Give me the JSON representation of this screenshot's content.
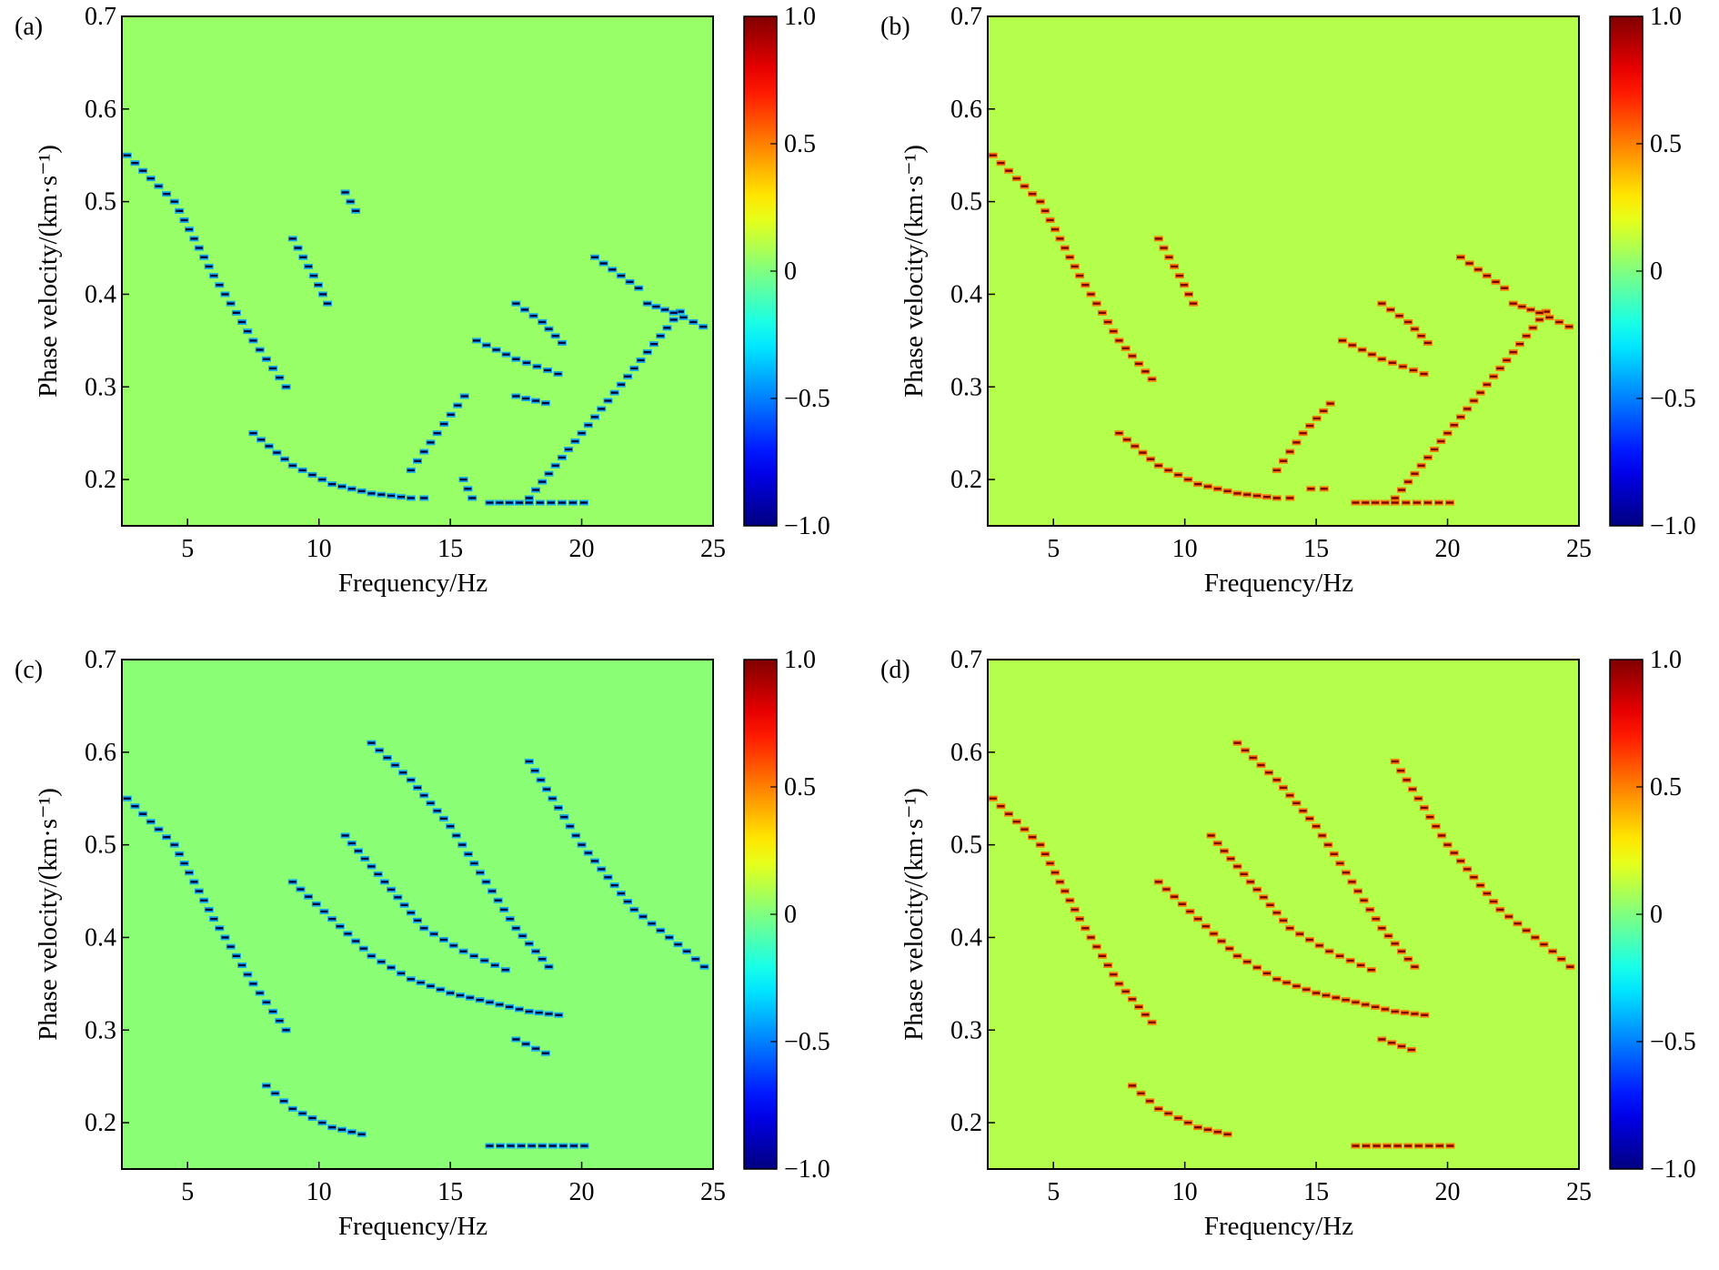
{
  "chart_data": [
    {
      "type": "heatmap",
      "panel_label": "(a)",
      "xlabel": "Frequency/Hz",
      "ylabel": "Phase velocity/(km·s⁻¹)",
      "xlim": [
        2.5,
        25
      ],
      "ylim": [
        0.15,
        0.7
      ],
      "x_ticks": [
        "5",
        "10",
        "15",
        "20",
        "25"
      ],
      "y_ticks": [
        "0.2",
        "0.3",
        "0.4",
        "0.5",
        "0.6",
        "0.7"
      ],
      "colorbar": {
        "min": -1.0,
        "max": 1.0,
        "ticks": [
          "1.0",
          "0.5",
          "0",
          "−0.5",
          "−1.0"
        ],
        "colormap": "jet"
      },
      "background_value": 0.05,
      "ridges": [
        {
          "x": [
            2.7,
            4.5,
            6.0,
            7.5,
            9.0
          ],
          "y": [
            0.55,
            0.5,
            0.42,
            0.35,
            0.29
          ],
          "sign": -1
        },
        {
          "x": [
            7.5,
            9.0,
            10.5,
            12.0,
            13.5,
            14.5
          ],
          "y": [
            0.25,
            0.215,
            0.195,
            0.185,
            0.18,
            0.18
          ],
          "sign": -1
        },
        {
          "x": [
            9.0,
            9.8,
            10.5
          ],
          "y": [
            0.46,
            0.42,
            0.38
          ],
          "sign": -1
        },
        {
          "x": [
            11.0,
            11.6
          ],
          "y": [
            0.51,
            0.48
          ],
          "sign": -1
        },
        {
          "x": [
            13.5,
            14.5,
            15.8
          ],
          "y": [
            0.21,
            0.25,
            0.3
          ],
          "sign": -1
        },
        {
          "x": [
            15.5,
            16.0
          ],
          "y": [
            0.2,
            0.17
          ],
          "sign": -1
        },
        {
          "x": [
            16.5,
            18.0,
            20.5
          ],
          "y": [
            0.175,
            0.175,
            0.175
          ],
          "sign": -1
        },
        {
          "x": [
            16.0,
            17.5,
            19.5
          ],
          "y": [
            0.35,
            0.33,
            0.31
          ],
          "sign": -1
        },
        {
          "x": [
            17.5,
            18.5,
            19.5
          ],
          "y": [
            0.39,
            0.37,
            0.34
          ],
          "sign": -1
        },
        {
          "x": [
            17.5,
            19.0
          ],
          "y": [
            0.29,
            0.28
          ],
          "sign": -1
        },
        {
          "x": [
            18.0,
            20.0,
            22.0,
            24.0
          ],
          "y": [
            0.18,
            0.25,
            0.32,
            0.39
          ],
          "sign": -1
        },
        {
          "x": [
            20.5,
            21.5,
            22.5
          ],
          "y": [
            0.44,
            0.42,
            0.4
          ],
          "sign": -1
        },
        {
          "x": [
            22.5,
            23.5,
            25.0
          ],
          "y": [
            0.39,
            0.38,
            0.36
          ],
          "sign": -1
        }
      ]
    },
    {
      "type": "heatmap",
      "panel_label": "(b)",
      "xlabel": "Frequency/Hz",
      "ylabel": "Phase velocity/(km·s⁻¹)",
      "xlim": [
        2.5,
        25
      ],
      "ylim": [
        0.15,
        0.7
      ],
      "x_ticks": [
        "5",
        "10",
        "15",
        "20",
        "25"
      ],
      "y_ticks": [
        "0.2",
        "0.3",
        "0.4",
        "0.5",
        "0.6",
        "0.7"
      ],
      "colorbar": {
        "min": -1.0,
        "max": 1.0,
        "ticks": [
          "1.0",
          "0.5",
          "0",
          "−0.5",
          "−1.0"
        ],
        "colormap": "jet"
      },
      "background_value": 0.1,
      "ridges": [
        {
          "x": [
            2.7,
            4.5,
            6.0,
            7.5,
            9.0
          ],
          "y": [
            0.55,
            0.5,
            0.42,
            0.35,
            0.3
          ],
          "sign": 1
        },
        {
          "x": [
            7.5,
            9.0,
            10.5,
            12.0,
            13.5,
            14.5
          ],
          "y": [
            0.25,
            0.215,
            0.195,
            0.185,
            0.18,
            0.18
          ],
          "sign": 1
        },
        {
          "x": [
            9.0,
            9.8,
            10.5
          ],
          "y": [
            0.46,
            0.42,
            0.38
          ],
          "sign": 1
        },
        {
          "x": [
            13.5,
            14.5,
            15.8
          ],
          "y": [
            0.21,
            0.25,
            0.29
          ],
          "sign": 1
        },
        {
          "x": [
            14.8,
            15.8
          ],
          "y": [
            0.19,
            0.19
          ],
          "sign": 1
        },
        {
          "x": [
            16.5,
            18.0,
            20.5
          ],
          "y": [
            0.175,
            0.175,
            0.175
          ],
          "sign": 1
        },
        {
          "x": [
            16.0,
            17.5,
            19.5
          ],
          "y": [
            0.35,
            0.33,
            0.31
          ],
          "sign": 1
        },
        {
          "x": [
            17.5,
            18.5,
            19.5
          ],
          "y": [
            0.39,
            0.37,
            0.34
          ],
          "sign": 1
        },
        {
          "x": [
            18.0,
            20.0,
            22.0,
            24.0
          ],
          "y": [
            0.18,
            0.25,
            0.32,
            0.39
          ],
          "sign": 1
        },
        {
          "x": [
            20.5,
            21.5,
            22.5
          ],
          "y": [
            0.44,
            0.42,
            0.4
          ],
          "sign": 1
        },
        {
          "x": [
            22.5,
            23.5,
            25.0
          ],
          "y": [
            0.39,
            0.38,
            0.36
          ],
          "sign": 1
        }
      ]
    },
    {
      "type": "heatmap",
      "panel_label": "(c)",
      "xlabel": "Frequency/Hz",
      "ylabel": "Phase velocity/(km·s⁻¹)",
      "xlim": [
        2.5,
        25
      ],
      "ylim": [
        0.15,
        0.7
      ],
      "x_ticks": [
        "5",
        "10",
        "15",
        "20",
        "25"
      ],
      "y_ticks": [
        "0.2",
        "0.3",
        "0.4",
        "0.5",
        "0.6",
        "0.7"
      ],
      "colorbar": {
        "min": -1.0,
        "max": 1.0,
        "ticks": [
          "1.0",
          "0.5",
          "0",
          "−0.5",
          "−1.0"
        ],
        "colormap": "jet"
      },
      "background_value": 0.02,
      "ridges": [
        {
          "x": [
            2.7,
            4.5,
            6.0,
            7.5,
            9.0
          ],
          "y": [
            0.55,
            0.5,
            0.42,
            0.35,
            0.29
          ],
          "sign": -1
        },
        {
          "x": [
            8.0,
            9.0,
            10.5,
            12.0
          ],
          "y": [
            0.24,
            0.215,
            0.195,
            0.185
          ],
          "sign": -1
        },
        {
          "x": [
            9.0,
            10.5,
            12.0,
            13.5,
            15.0,
            16.5,
            18.0,
            19.5
          ],
          "y": [
            0.46,
            0.42,
            0.38,
            0.355,
            0.34,
            0.33,
            0.32,
            0.315
          ],
          "sign": -1
        },
        {
          "x": [
            11.0,
            12.5,
            14.0,
            15.5,
            17.5
          ],
          "y": [
            0.51,
            0.46,
            0.41,
            0.385,
            0.36
          ],
          "sign": -1
        },
        {
          "x": [
            12.0,
            13.5,
            15.0,
            17.5,
            19.0
          ],
          "y": [
            0.61,
            0.57,
            0.52,
            0.41,
            0.36
          ],
          "sign": -1
        },
        {
          "x": [
            17.5,
            19.0
          ],
          "y": [
            0.29,
            0.27
          ],
          "sign": -1
        },
        {
          "x": [
            16.5,
            18.5,
            20.5
          ],
          "y": [
            0.175,
            0.175,
            0.175
          ],
          "sign": -1
        },
        {
          "x": [
            18.0,
            20.0,
            22.0,
            24.0,
            25.0
          ],
          "y": [
            0.59,
            0.5,
            0.43,
            0.385,
            0.36
          ],
          "sign": -1
        }
      ]
    },
    {
      "type": "heatmap",
      "panel_label": "(d)",
      "xlabel": "Frequency/Hz",
      "ylabel": "Phase velocity/(km·s⁻¹)",
      "xlim": [
        2.5,
        25
      ],
      "ylim": [
        0.15,
        0.7
      ],
      "x_ticks": [
        "5",
        "10",
        "15",
        "20",
        "25"
      ],
      "y_ticks": [
        "0.2",
        "0.3",
        "0.4",
        "0.5",
        "0.6",
        "0.7"
      ],
      "colorbar": {
        "min": -1.0,
        "max": 1.0,
        "ticks": [
          "1.0",
          "0.5",
          "0",
          "−0.5",
          "−1.0"
        ],
        "colormap": "jet"
      },
      "background_value": 0.1,
      "ridges": [
        {
          "x": [
            2.7,
            4.5,
            6.0,
            7.5,
            9.0
          ],
          "y": [
            0.55,
            0.5,
            0.42,
            0.35,
            0.3
          ],
          "sign": 1
        },
        {
          "x": [
            8.0,
            9.0,
            10.5,
            12.0
          ],
          "y": [
            0.24,
            0.215,
            0.195,
            0.185
          ],
          "sign": 1
        },
        {
          "x": [
            9.0,
            10.5,
            12.0,
            13.5,
            15.0,
            16.5,
            18.0,
            19.5
          ],
          "y": [
            0.46,
            0.42,
            0.38,
            0.355,
            0.34,
            0.33,
            0.32,
            0.315
          ],
          "sign": 1
        },
        {
          "x": [
            11.0,
            12.5,
            14.0,
            15.5,
            17.5
          ],
          "y": [
            0.51,
            0.46,
            0.41,
            0.385,
            0.36
          ],
          "sign": 1
        },
        {
          "x": [
            12.0,
            13.5,
            15.0,
            17.5,
            19.0
          ],
          "y": [
            0.61,
            0.57,
            0.52,
            0.41,
            0.36
          ],
          "sign": 1
        },
        {
          "x": [
            17.5,
            19.0
          ],
          "y": [
            0.29,
            0.275
          ],
          "sign": 1
        },
        {
          "x": [
            16.5,
            18.5,
            20.5
          ],
          "y": [
            0.175,
            0.175,
            0.175
          ],
          "sign": 1
        },
        {
          "x": [
            18.0,
            20.0,
            22.0,
            24.0,
            25.0
          ],
          "y": [
            0.59,
            0.5,
            0.43,
            0.385,
            0.36
          ],
          "sign": 1
        }
      ]
    }
  ]
}
